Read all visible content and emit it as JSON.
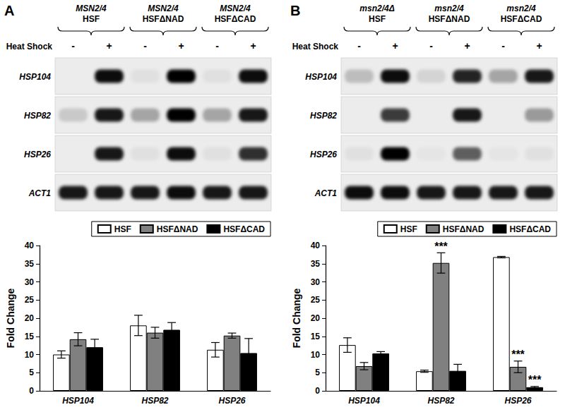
{
  "panel_labels": [
    "A",
    "B"
  ],
  "blots": [
    {
      "strains": [
        {
          "genotype": "MSN2/4",
          "construct": "HSF"
        },
        {
          "genotype": "MSN2/4",
          "construct": "HSFΔNAD"
        },
        {
          "genotype": "MSN2/4",
          "construct": "HSFΔCAD"
        }
      ],
      "treatment": "Heat Shock",
      "lanes": [
        "-",
        "+"
      ],
      "genes": [
        "HSP104",
        "HSP82",
        "HSP26",
        "ACT1"
      ],
      "band_intensity": [
        [
          0,
          0.95,
          0.05,
          1,
          0.05,
          0.95
        ],
        [
          0.15,
          0.9,
          0.3,
          1,
          0.3,
          0.9
        ],
        [
          0,
          0.9,
          0.05,
          0.95,
          0.05,
          0.8
        ],
        [
          0.9,
          0.9,
          0.9,
          0.95,
          0.9,
          0.9
        ]
      ]
    },
    {
      "strains": [
        {
          "genotype": "msn2/4Δ",
          "construct": "HSF"
        },
        {
          "genotype": "msn2/4",
          "construct": "HSFΔNAD"
        },
        {
          "genotype": "msn2/4",
          "construct": "HSFΔCAD"
        }
      ],
      "treatment": "Heat Shock",
      "lanes": [
        "-",
        "+"
      ],
      "genes": [
        "HSP104",
        "HSP82",
        "HSP26",
        "ACT1"
      ],
      "band_intensity": [
        [
          0.2,
          0.95,
          0.1,
          0.85,
          0.3,
          0.9
        ],
        [
          0,
          0.75,
          0,
          0.9,
          0,
          0.35
        ],
        [
          0.05,
          1,
          0.03,
          0.6,
          0.03,
          0.05
        ],
        [
          0.95,
          0.95,
          0.9,
          0.9,
          0.9,
          0.9
        ]
      ]
    }
  ],
  "chart_data": [
    {
      "type": "bar",
      "categories": [
        "HSP104",
        "HSP82",
        "HSP26"
      ],
      "y_label": "Fold Change",
      "ylim": [
        0,
        40
      ],
      "yticks": [
        0,
        5,
        10,
        15,
        20,
        25,
        30,
        35,
        40
      ],
      "grid": false,
      "legend": "top-right",
      "series": [
        {
          "name": "HSF",
          "color": "#ffffff",
          "values": [
            10,
            18,
            11.3
          ],
          "error": [
            1,
            2.8,
            2
          ]
        },
        {
          "name": "HSFΔNAD",
          "color": "#808080",
          "values": [
            14.2,
            16,
            15.2
          ],
          "error": [
            1.8,
            1.5,
            0.7
          ]
        },
        {
          "name": "HSFΔCAD",
          "color": "#000000",
          "values": [
            12,
            16.8,
            10.4
          ],
          "error": [
            2.2,
            2,
            4
          ]
        }
      ]
    },
    {
      "type": "bar",
      "categories": [
        "HSP104",
        "HSP82",
        "HSP26"
      ],
      "y_label": "Fold Change",
      "ylim": [
        0,
        40
      ],
      "yticks": [
        0,
        5,
        10,
        15,
        20,
        25,
        30,
        35,
        40
      ],
      "grid": false,
      "legend": "top-right",
      "series": [
        {
          "name": "HSF",
          "color": "#ffffff",
          "values": [
            12.6,
            5.4,
            36.8
          ],
          "error": [
            2,
            0.3,
            0.2
          ]
        },
        {
          "name": "HSFΔNAD",
          "color": "#808080",
          "values": [
            6.8,
            35.2,
            6.6
          ],
          "error": [
            1,
            2.8,
            1.6
          ]
        },
        {
          "name": "HSFΔCAD",
          "color": "#000000",
          "values": [
            10.3,
            5.5,
            1.0
          ],
          "error": [
            0.5,
            1.8,
            0.2
          ]
        }
      ],
      "annotations": [
        {
          "text": "***",
          "series": "HSFΔNAD",
          "category": "HSP82"
        },
        {
          "text": "***",
          "series": "HSFΔNAD",
          "category": "HSP26"
        },
        {
          "text": "***",
          "series": "HSFΔCAD",
          "category": "HSP26"
        }
      ]
    }
  ]
}
